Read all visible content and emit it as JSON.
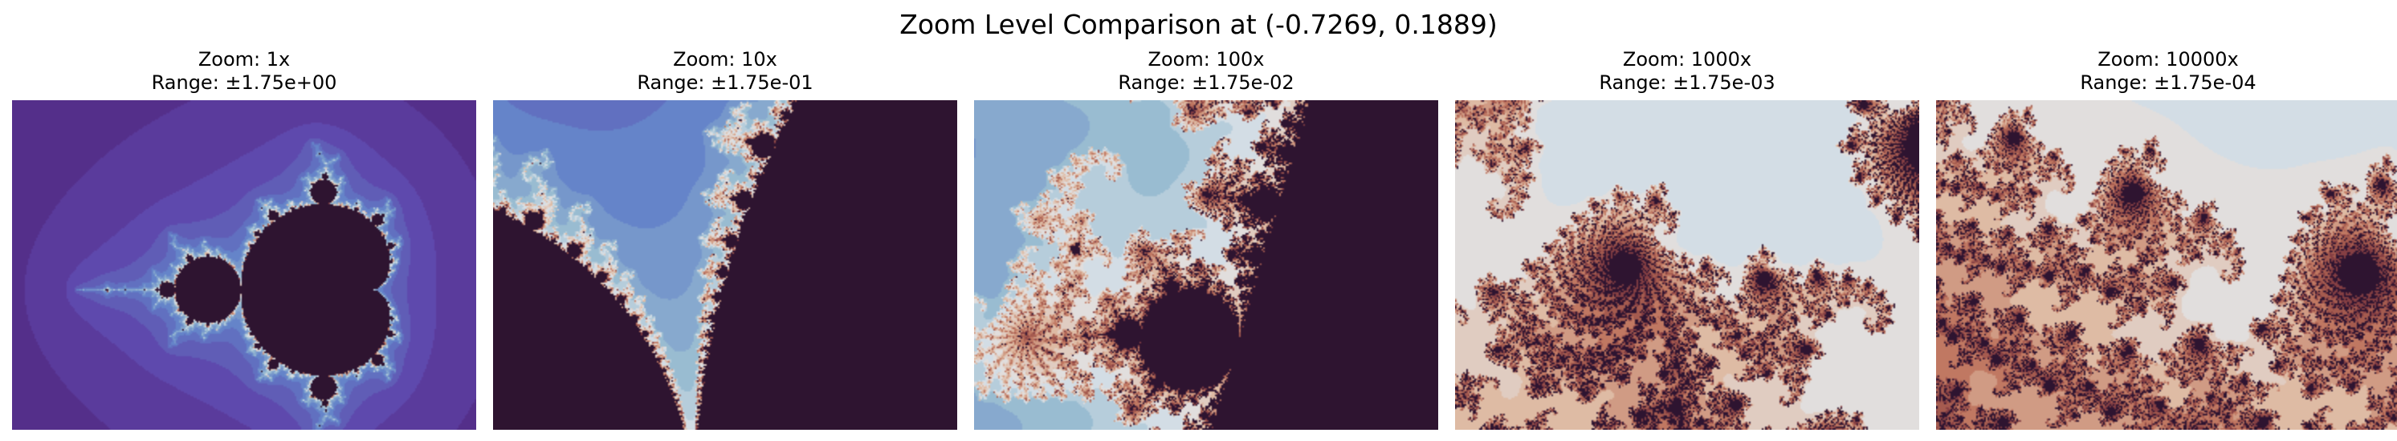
{
  "figure": {
    "suptitle": "Zoom Level Comparison at (-0.7269, 0.1889)",
    "colormap": "twilight_shifted",
    "interior_color": "#2e1430"
  },
  "panels": [
    {
      "zoom_label": "Zoom: 1x",
      "range_label": "Range: ±1.75e+00",
      "zoom": 1,
      "center": [
        -0.7269,
        0.1889
      ],
      "range": 1.75
    },
    {
      "zoom_label": "Zoom: 10x",
      "range_label": "Range: ±1.75e-01",
      "zoom": 10,
      "center": [
        -0.7269,
        0.1889
      ],
      "range": 0.175
    },
    {
      "zoom_label": "Zoom: 100x",
      "range_label": "Range: ±1.75e-02",
      "zoom": 100,
      "center": [
        -0.7269,
        0.1889
      ],
      "range": 0.0175
    },
    {
      "zoom_label": "Zoom: 1000x",
      "range_label": "Range: ±1.75e-03",
      "zoom": 1000,
      "center": [
        -0.7269,
        0.1889
      ],
      "range": 0.00175
    },
    {
      "zoom_label": "Zoom: 10000x",
      "range_label": "Range: ±1.75e-04",
      "zoom": 10000,
      "center": [
        -0.7269,
        0.1889
      ],
      "range": 0.000175
    }
  ]
}
